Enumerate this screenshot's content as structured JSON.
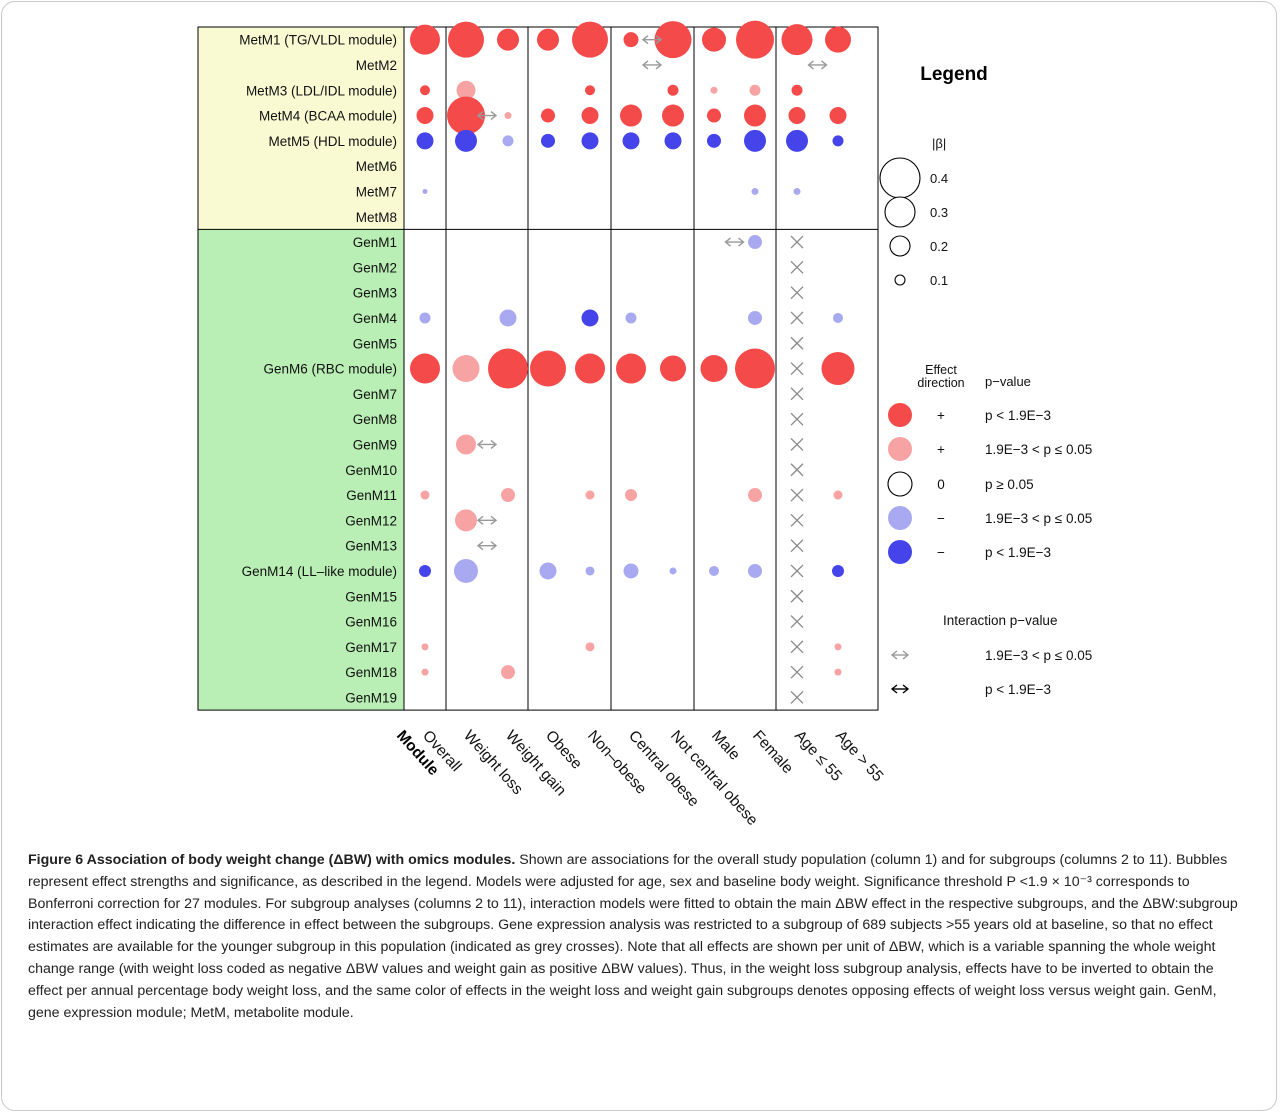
{
  "figure": {
    "caption_title": "Figure 6 Association of body weight change (ΔBW) with omics modules.",
    "caption_body": " Shown are associations for the overall study population (column 1) and for subgroups (columns 2 to 11). Bubbles represent effect strengths and significance, as described in the legend. Models were adjusted for age, sex and baseline body weight. Significance threshold P <1.9 × 10⁻³ corresponds to Bonferroni correction for 27 modules. For subgroup analyses (columns 2 to 11), interaction models were fitted to obtain the main ΔBW effect in the respective subgroups, and the ΔBW:subgroup interaction effect indicating the difference in effect between the subgroups. Gene expression analysis was restricted to a subgroup of 689 subjects >55 years old at baseline, so that no effect estimates are available for the younger subgroup in this population (indicated as grey crosses). Note that all effects are shown per unit of ΔBW, which is a variable spanning the whole weight change range (with weight loss coded as negative ΔBW values and weight gain as positive ΔBW values). Thus, in the weight loss subgroup analysis, effects have to be inverted to obtain the effect per annual percentage body weight loss, and the same color of effects in the weight loss and weight gain subgroups denotes opposing effects of weight loss versus weight gain. GenM, gene expression module; MetM, metabolite module."
  },
  "chart_data": {
    "type": "bubble-matrix",
    "xlabel": "Module",
    "columns": [
      "Overall",
      "Weight loss",
      "Weight gain",
      "Obese",
      "Non–obese",
      "Central obese",
      "Not central obese",
      "Male",
      "Female",
      "Age ≤ 55",
      "Age > 55"
    ],
    "rows": [
      "MetM1 (TG/VLDL module)",
      "MetM2",
      "MetM3 (LDL/IDL module)",
      "MetM4 (BCAA module)",
      "MetM5 (HDL module)",
      "MetM6",
      "MetM7",
      "MetM8",
      "GenM1",
      "GenM2",
      "GenM3",
      "GenM4",
      "GenM5",
      "GenM6 (RBC module)",
      "GenM7",
      "GenM8",
      "GenM9",
      "GenM10",
      "GenM11",
      "GenM12",
      "GenM13",
      "GenM14 (LL–like module)",
      "GenM15",
      "GenM16",
      "GenM17",
      "GenM18",
      "GenM19"
    ],
    "groups": [
      {
        "name": "MetM",
        "rows": 8,
        "color": "#fafad2"
      },
      {
        "name": "GenM",
        "rows": 19,
        "color": "#b9eeb4"
      }
    ],
    "colors": {
      "positive_strong": "#f54a4a",
      "positive_weak": "#f8a3a3",
      "negative_weak": "#a9a9f1",
      "negative_strong": "#4444ea",
      "interaction_weak": "#999999",
      "interaction_strong": "#000000",
      "no_estimate": "#8a8a8a"
    },
    "effects": [
      {
        "row": "MetM1 (TG/VLDL module)",
        "col": "Overall",
        "beta": 0.3,
        "dir": "+",
        "p": "strong"
      },
      {
        "row": "MetM1 (TG/VLDL module)",
        "col": "Weight loss",
        "beta": 0.36,
        "dir": "+",
        "p": "strong"
      },
      {
        "row": "MetM1 (TG/VLDL module)",
        "col": "Weight gain",
        "beta": 0.22,
        "dir": "+",
        "p": "strong"
      },
      {
        "row": "MetM1 (TG/VLDL module)",
        "col": "Obese",
        "beta": 0.22,
        "dir": "+",
        "p": "strong"
      },
      {
        "row": "MetM1 (TG/VLDL module)",
        "col": "Non–obese",
        "beta": 0.36,
        "dir": "+",
        "p": "strong"
      },
      {
        "row": "MetM1 (TG/VLDL module)",
        "col": "Central obese",
        "beta": 0.15,
        "dir": "+",
        "p": "strong"
      },
      {
        "row": "MetM1 (TG/VLDL module)",
        "col": "Not central obese",
        "beta": 0.37,
        "dir": "+",
        "p": "strong"
      },
      {
        "row": "MetM1 (TG/VLDL module)",
        "col": "Male",
        "beta": 0.24,
        "dir": "+",
        "p": "strong"
      },
      {
        "row": "MetM1 (TG/VLDL module)",
        "col": "Female",
        "beta": 0.38,
        "dir": "+",
        "p": "strong"
      },
      {
        "row": "MetM1 (TG/VLDL module)",
        "col": "Age ≤ 55",
        "beta": 0.31,
        "dir": "+",
        "p": "strong"
      },
      {
        "row": "MetM1 (TG/VLDL module)",
        "col": "Age > 55",
        "beta": 0.26,
        "dir": "+",
        "p": "strong"
      },
      {
        "row": "MetM3 (LDL/IDL module)",
        "col": "Overall",
        "beta": 0.1,
        "dir": "+",
        "p": "strong"
      },
      {
        "row": "MetM3 (LDL/IDL module)",
        "col": "Weight loss",
        "beta": 0.19,
        "dir": "+",
        "p": "weak"
      },
      {
        "row": "MetM3 (LDL/IDL module)",
        "col": "Non–obese",
        "beta": 0.1,
        "dir": "+",
        "p": "strong"
      },
      {
        "row": "MetM3 (LDL/IDL module)",
        "col": "Not central obese",
        "beta": 0.11,
        "dir": "+",
        "p": "strong"
      },
      {
        "row": "MetM3 (LDL/IDL module)",
        "col": "Male",
        "beta": 0.07,
        "dir": "+",
        "p": "weak"
      },
      {
        "row": "MetM3 (LDL/IDL module)",
        "col": "Female",
        "beta": 0.11,
        "dir": "+",
        "p": "weak"
      },
      {
        "row": "MetM3 (LDL/IDL module)",
        "col": "Age ≤ 55",
        "beta": 0.11,
        "dir": "+",
        "p": "strong"
      },
      {
        "row": "MetM4 (BCAA module)",
        "col": "Overall",
        "beta": 0.17,
        "dir": "+",
        "p": "strong"
      },
      {
        "row": "MetM4 (BCAA module)",
        "col": "Weight loss",
        "beta": 0.38,
        "dir": "+",
        "p": "strong"
      },
      {
        "row": "MetM4 (BCAA module)",
        "col": "Weight gain",
        "beta": 0.07,
        "dir": "+",
        "p": "weak"
      },
      {
        "row": "MetM4 (BCAA module)",
        "col": "Obese",
        "beta": 0.14,
        "dir": "+",
        "p": "strong"
      },
      {
        "row": "MetM4 (BCAA module)",
        "col": "Non–obese",
        "beta": 0.17,
        "dir": "+",
        "p": "strong"
      },
      {
        "row": "MetM4 (BCAA module)",
        "col": "Central obese",
        "beta": 0.22,
        "dir": "+",
        "p": "strong"
      },
      {
        "row": "MetM4 (BCAA module)",
        "col": "Not central obese",
        "beta": 0.22,
        "dir": "+",
        "p": "strong"
      },
      {
        "row": "MetM4 (BCAA module)",
        "col": "Male",
        "beta": 0.14,
        "dir": "+",
        "p": "strong"
      },
      {
        "row": "MetM4 (BCAA module)",
        "col": "Female",
        "beta": 0.22,
        "dir": "+",
        "p": "strong"
      },
      {
        "row": "MetM4 (BCAA module)",
        "col": "Age ≤ 55",
        "beta": 0.17,
        "dir": "+",
        "p": "strong"
      },
      {
        "row": "MetM4 (BCAA module)",
        "col": "Age > 55",
        "beta": 0.17,
        "dir": "+",
        "p": "strong"
      },
      {
        "row": "MetM5 (HDL module)",
        "col": "Overall",
        "beta": 0.17,
        "dir": "−",
        "p": "strong"
      },
      {
        "row": "MetM5 (HDL module)",
        "col": "Weight loss",
        "beta": 0.22,
        "dir": "−",
        "p": "strong"
      },
      {
        "row": "MetM5 (HDL module)",
        "col": "Weight gain",
        "beta": 0.11,
        "dir": "−",
        "p": "weak"
      },
      {
        "row": "MetM5 (HDL module)",
        "col": "Obese",
        "beta": 0.14,
        "dir": "−",
        "p": "strong"
      },
      {
        "row": "MetM5 (HDL module)",
        "col": "Non–obese",
        "beta": 0.17,
        "dir": "−",
        "p": "strong"
      },
      {
        "row": "MetM5 (HDL module)",
        "col": "Central obese",
        "beta": 0.17,
        "dir": "−",
        "p": "strong"
      },
      {
        "row": "MetM5 (HDL module)",
        "col": "Not central obese",
        "beta": 0.17,
        "dir": "−",
        "p": "strong"
      },
      {
        "row": "MetM5 (HDL module)",
        "col": "Male",
        "beta": 0.14,
        "dir": "−",
        "p": "strong"
      },
      {
        "row": "MetM5 (HDL module)",
        "col": "Female",
        "beta": 0.22,
        "dir": "−",
        "p": "strong"
      },
      {
        "row": "MetM5 (HDL module)",
        "col": "Age ≤ 55",
        "beta": 0.22,
        "dir": "−",
        "p": "strong"
      },
      {
        "row": "MetM5 (HDL module)",
        "col": "Age > 55",
        "beta": 0.11,
        "dir": "−",
        "p": "strong"
      },
      {
        "row": "MetM7",
        "col": "Overall",
        "beta": 0.05,
        "dir": "−",
        "p": "weak"
      },
      {
        "row": "MetM7",
        "col": "Female",
        "beta": 0.07,
        "dir": "−",
        "p": "weak"
      },
      {
        "row": "MetM7",
        "col": "Age ≤ 55",
        "beta": 0.07,
        "dir": "−",
        "p": "weak"
      },
      {
        "row": "GenM1",
        "col": "Female",
        "beta": 0.14,
        "dir": "−",
        "p": "weak"
      },
      {
        "row": "GenM4",
        "col": "Overall",
        "beta": 0.11,
        "dir": "−",
        "p": "weak"
      },
      {
        "row": "GenM4",
        "col": "Weight gain",
        "beta": 0.17,
        "dir": "−",
        "p": "weak"
      },
      {
        "row": "GenM4",
        "col": "Non–obese",
        "beta": 0.17,
        "dir": "−",
        "p": "strong"
      },
      {
        "row": "GenM4",
        "col": "Central obese",
        "beta": 0.11,
        "dir": "−",
        "p": "weak"
      },
      {
        "row": "GenM4",
        "col": "Female",
        "beta": 0.14,
        "dir": "−",
        "p": "weak"
      },
      {
        "row": "GenM4",
        "col": "Age > 55",
        "beta": 0.1,
        "dir": "−",
        "p": "weak"
      },
      {
        "row": "GenM6 (RBC module)",
        "col": "Overall",
        "beta": 0.3,
        "dir": "+",
        "p": "strong"
      },
      {
        "row": "GenM6 (RBC module)",
        "col": "Weight loss",
        "beta": 0.27,
        "dir": "+",
        "p": "weak"
      },
      {
        "row": "GenM6 (RBC module)",
        "col": "Weight gain",
        "beta": 0.4,
        "dir": "+",
        "p": "strong"
      },
      {
        "row": "GenM6 (RBC module)",
        "col": "Obese",
        "beta": 0.36,
        "dir": "+",
        "p": "strong"
      },
      {
        "row": "GenM6 (RBC module)",
        "col": "Non–obese",
        "beta": 0.3,
        "dir": "+",
        "p": "strong"
      },
      {
        "row": "GenM6 (RBC module)",
        "col": "Central obese",
        "beta": 0.3,
        "dir": "+",
        "p": "strong"
      },
      {
        "row": "GenM6 (RBC module)",
        "col": "Not central obese",
        "beta": 0.26,
        "dir": "+",
        "p": "strong"
      },
      {
        "row": "GenM6 (RBC module)",
        "col": "Male",
        "beta": 0.27,
        "dir": "+",
        "p": "strong"
      },
      {
        "row": "GenM6 (RBC module)",
        "col": "Female",
        "beta": 0.4,
        "dir": "+",
        "p": "strong"
      },
      {
        "row": "GenM6 (RBC module)",
        "col": "Age > 55",
        "beta": 0.33,
        "dir": "+",
        "p": "strong"
      },
      {
        "row": "GenM9",
        "col": "Weight loss",
        "beta": 0.2,
        "dir": "+",
        "p": "weak"
      },
      {
        "row": "GenM11",
        "col": "Overall",
        "beta": 0.09,
        "dir": "+",
        "p": "weak"
      },
      {
        "row": "GenM11",
        "col": "Weight gain",
        "beta": 0.14,
        "dir": "+",
        "p": "weak"
      },
      {
        "row": "GenM11",
        "col": "Non–obese",
        "beta": 0.09,
        "dir": "+",
        "p": "weak"
      },
      {
        "row": "GenM11",
        "col": "Central obese",
        "beta": 0.12,
        "dir": "+",
        "p": "weak"
      },
      {
        "row": "GenM11",
        "col": "Female",
        "beta": 0.14,
        "dir": "+",
        "p": "weak"
      },
      {
        "row": "GenM11",
        "col": "Age > 55",
        "beta": 0.09,
        "dir": "+",
        "p": "weak"
      },
      {
        "row": "GenM12",
        "col": "Weight loss",
        "beta": 0.22,
        "dir": "+",
        "p": "weak"
      },
      {
        "row": "GenM14 (LL–like module)",
        "col": "Overall",
        "beta": 0.12,
        "dir": "−",
        "p": "strong"
      },
      {
        "row": "GenM14 (LL–like module)",
        "col": "Weight loss",
        "beta": 0.24,
        "dir": "−",
        "p": "weak"
      },
      {
        "row": "GenM14 (LL–like module)",
        "col": "Obese",
        "beta": 0.17,
        "dir": "−",
        "p": "weak"
      },
      {
        "row": "GenM14 (LL–like module)",
        "col": "Non–obese",
        "beta": 0.09,
        "dir": "−",
        "p": "weak"
      },
      {
        "row": "GenM14 (LL–like module)",
        "col": "Central obese",
        "beta": 0.15,
        "dir": "−",
        "p": "weak"
      },
      {
        "row": "GenM14 (LL–like module)",
        "col": "Not central obese",
        "beta": 0.07,
        "dir": "−",
        "p": "weak"
      },
      {
        "row": "GenM14 (LL–like module)",
        "col": "Male",
        "beta": 0.1,
        "dir": "−",
        "p": "weak"
      },
      {
        "row": "GenM14 (LL–like module)",
        "col": "Female",
        "beta": 0.14,
        "dir": "−",
        "p": "weak"
      },
      {
        "row": "GenM14 (LL–like module)",
        "col": "Age > 55",
        "beta": 0.12,
        "dir": "−",
        "p": "strong"
      },
      {
        "row": "GenM17",
        "col": "Overall",
        "beta": 0.07,
        "dir": "+",
        "p": "weak"
      },
      {
        "row": "GenM17",
        "col": "Non–obese",
        "beta": 0.09,
        "dir": "+",
        "p": "weak"
      },
      {
        "row": "GenM17",
        "col": "Age > 55",
        "beta": 0.07,
        "dir": "+",
        "p": "weak"
      },
      {
        "row": "GenM18",
        "col": "Overall",
        "beta": 0.07,
        "dir": "+",
        "p": "weak"
      },
      {
        "row": "GenM18",
        "col": "Weight gain",
        "beta": 0.14,
        "dir": "+",
        "p": "weak"
      },
      {
        "row": "GenM18",
        "col": "Age > 55",
        "beta": 0.07,
        "dir": "+",
        "p": "weak"
      }
    ],
    "interactions": [
      {
        "row": "MetM1 (TG/VLDL module)",
        "between": [
          "Central obese",
          "Not central obese"
        ],
        "p": "weak"
      },
      {
        "row": "MetM2",
        "between": [
          "Central obese",
          "Not central obese"
        ],
        "p": "weak"
      },
      {
        "row": "MetM2",
        "between": [
          "Age ≤ 55",
          "Age > 55"
        ],
        "p": "weak"
      },
      {
        "row": "MetM4 (BCAA module)",
        "between": [
          "Weight loss",
          "Weight gain"
        ],
        "p": "weak"
      },
      {
        "row": "GenM1",
        "between": [
          "Male",
          "Female"
        ],
        "p": "weak"
      },
      {
        "row": "GenM9",
        "between": [
          "Weight loss",
          "Weight gain"
        ],
        "p": "weak"
      },
      {
        "row": "GenM12",
        "between": [
          "Weight loss",
          "Weight gain"
        ],
        "p": "weak"
      },
      {
        "row": "GenM13",
        "between": [
          "Weight loss",
          "Weight gain"
        ],
        "p": "weak"
      }
    ],
    "crosses": {
      "col": "Age ≤ 55",
      "rows_group": "GenM"
    },
    "legend": {
      "title": "Legend",
      "size_title": "|β|",
      "sizes": [
        0.4,
        0.3,
        0.2,
        0.1
      ],
      "size_labels": [
        "0.4",
        "0.3",
        "0.2",
        "0.1"
      ],
      "effect_header_line1": "Effect",
      "effect_header_line2": "direction",
      "pvalue_header": "p−value",
      "effect_entries": [
        {
          "color": "#f54a4a",
          "sign": "+",
          "label": "p < 1.9E−3"
        },
        {
          "color": "#f8a3a3",
          "sign": "+",
          "label": "1.9E−3 < p ≤ 0.05"
        },
        {
          "color": "#ffffff",
          "sign": "0",
          "label": "p ≥ 0.05"
        },
        {
          "color": "#a9a9f1",
          "sign": "−",
          "label": "1.9E−3 < p ≤ 0.05"
        },
        {
          "color": "#4444ea",
          "sign": "−",
          "label": "p < 1.9E−3"
        }
      ],
      "interaction_title": "Interaction p−value",
      "interaction_entries": [
        {
          "strength": "weak",
          "label": "1.9E−3 < p ≤ 0.05"
        },
        {
          "strength": "strong",
          "label": "p < 1.9E−3"
        }
      ]
    }
  }
}
